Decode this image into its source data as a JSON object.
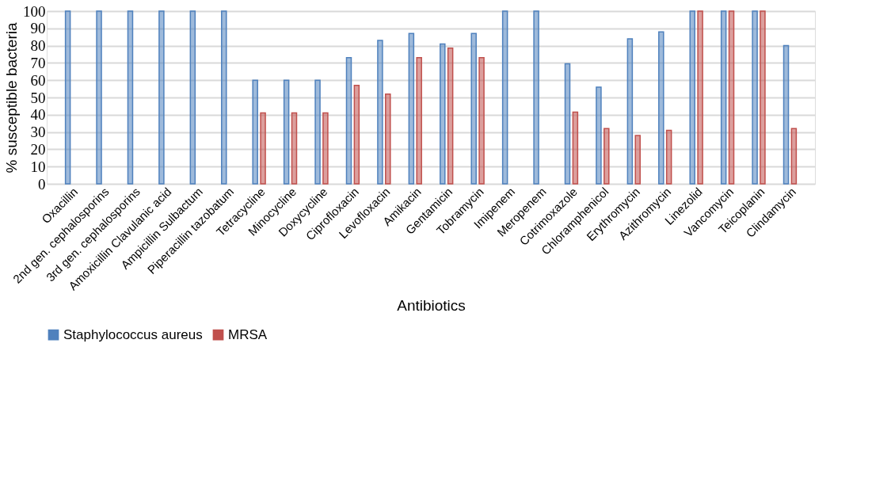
{
  "chart_data": {
    "type": "bar",
    "xlabel": "Antibiotics",
    "ylabel": "% susceptible bacteria",
    "categories": [
      "Oxacillin",
      "2nd gen. cephalosporins",
      "3rd gen. cephalosporins",
      "Amoxicillin Clavulanic acid",
      "Ampicillin Sulbactum",
      "Piperacillin tazobatum",
      "Tetracycline",
      "Minocycline",
      "Doxycycline",
      "Ciprofloxacin",
      "Levofloxacin",
      "Amikacin",
      "Gentamicin",
      "Tobramycin",
      "Imipenem",
      "Meropenem",
      "Cotrimoxazole",
      "Chloramphenicol",
      "Erythromycin",
      "Azithromycin",
      "Linezolid",
      "Vancomycin",
      "Teicoplanin",
      "Clindamycin"
    ],
    "series": [
      {
        "name": "Staphylococcus aureus",
        "color": "#4f81bd",
        "values": [
          100,
          100,
          100,
          100,
          100,
          100,
          60,
          60,
          60,
          73,
          83,
          87,
          81,
          87,
          100,
          100,
          69.5,
          56,
          84,
          88,
          100,
          100,
          100,
          80
        ]
      },
      {
        "name": "MRSA",
        "color": "#c0504d",
        "values": [
          null,
          null,
          null,
          null,
          null,
          null,
          41,
          41,
          41,
          57,
          52,
          73,
          78.5,
          73,
          null,
          null,
          41.5,
          32,
          28,
          31,
          100,
          100,
          100,
          32
        ]
      }
    ],
    "ylim": [
      0,
      100
    ],
    "yticks": [
      0,
      10,
      20,
      30,
      40,
      50,
      60,
      70,
      80,
      90,
      100
    ],
    "grid": "y",
    "legend": "bottom"
  }
}
